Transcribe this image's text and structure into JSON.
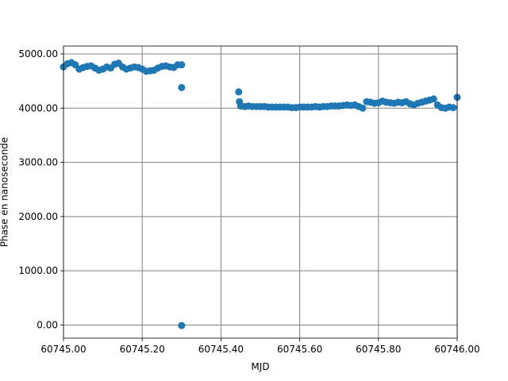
{
  "chart_data": {
    "type": "scatter",
    "x_label": "MJD",
    "y_label": "Phase en nanoseconde",
    "color": "#1f77b4",
    "grid": true,
    "xlim": [
      60745.0,
      60746.0
    ],
    "ylim": [
      -242,
      5146
    ],
    "xticks": [
      {
        "value": 60745.0,
        "label": "60745.00"
      },
      {
        "value": 60745.2,
        "label": "60745.20"
      },
      {
        "value": 60745.4,
        "label": "60745.40"
      },
      {
        "value": 60745.6,
        "label": "60745.60"
      },
      {
        "value": 60745.8,
        "label": "60745.80"
      },
      {
        "value": 60746.0,
        "label": "60746.00"
      }
    ],
    "yticks": [
      {
        "value": 0,
        "label": "0.00"
      },
      {
        "value": 1000,
        "label": "1000.00"
      },
      {
        "value": 2000,
        "label": "2000.00"
      },
      {
        "value": 3000,
        "label": "3000.00"
      },
      {
        "value": 4000,
        "label": "4000.00"
      },
      {
        "value": 5000,
        "label": "5000.00"
      }
    ],
    "x": [
      60745.0,
      60745.01,
      60745.02,
      60745.03,
      60745.04,
      60745.05,
      60745.06,
      60745.07,
      60745.08,
      60745.09,
      60745.1,
      60745.11,
      60745.12,
      60745.13,
      60745.14,
      60745.15,
      60745.16,
      60745.17,
      60745.18,
      60745.19,
      60745.2,
      60745.21,
      60745.22,
      60745.23,
      60745.24,
      60745.25,
      60745.26,
      60745.27,
      60745.28,
      60745.29,
      60745.3,
      60745.3,
      60745.3,
      60745.445,
      60745.447,
      60745.45,
      60745.46,
      60745.47,
      60745.48,
      60745.49,
      60745.5,
      60745.51,
      60745.52,
      60745.53,
      60745.54,
      60745.55,
      60745.56,
      60745.57,
      60745.58,
      60745.59,
      60745.6,
      60745.61,
      60745.62,
      60745.63,
      60745.64,
      60745.65,
      60745.66,
      60745.67,
      60745.68,
      60745.69,
      60745.7,
      60745.71,
      60745.72,
      60745.73,
      60745.74,
      60745.75,
      60745.76,
      60745.77,
      60745.78,
      60745.79,
      60745.8,
      60745.81,
      60745.82,
      60745.83,
      60745.84,
      60745.85,
      60745.86,
      60745.87,
      60745.88,
      60745.89,
      60745.9,
      60745.91,
      60745.92,
      60745.93,
      60745.94,
      60745.95,
      60745.96,
      60745.97,
      60745.98,
      60745.99,
      60746.0
    ],
    "values": [
      4760,
      4820,
      4840,
      4800,
      4720,
      4750,
      4770,
      4780,
      4740,
      4700,
      4720,
      4760,
      4740,
      4810,
      4830,
      4760,
      4720,
      4740,
      4760,
      4750,
      4720,
      4680,
      4690,
      4700,
      4740,
      4770,
      4780,
      4760,
      4750,
      4800,
      4800,
      4380,
      -10,
      4300,
      4120,
      4040,
      4030,
      4040,
      4030,
      4030,
      4030,
      4030,
      4020,
      4020,
      4020,
      4020,
      4020,
      4020,
      4010,
      4010,
      4020,
      4020,
      4020,
      4020,
      4030,
      4020,
      4030,
      4030,
      4040,
      4040,
      4040,
      4050,
      4060,
      4050,
      4060,
      4030,
      4000,
      4120,
      4110,
      4090,
      4100,
      4130,
      4110,
      4100,
      4090,
      4110,
      4100,
      4120,
      4080,
      4060,
      4090,
      4110,
      4130,
      4150,
      4170,
      4060,
      4010,
      4000,
      4020,
      4010,
      4200
    ]
  }
}
